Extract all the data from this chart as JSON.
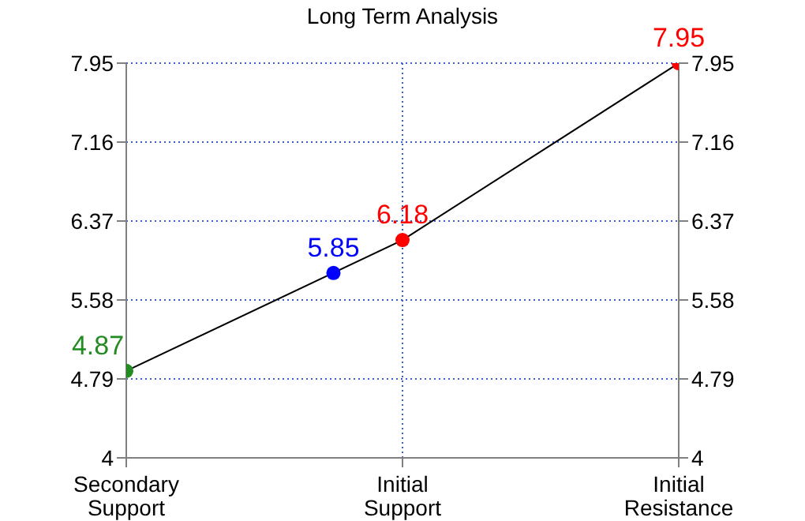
{
  "chart_data": {
    "type": "line",
    "title": "Long Term Analysis",
    "categories": [
      "Secondary Support",
      null,
      null,
      null,
      "Initial Support",
      null,
      null,
      null,
      "Initial Resistance"
    ],
    "ylim": [
      4,
      7.95
    ],
    "yticks": [
      4,
      4.79,
      5.58,
      6.37,
      7.16,
      7.95
    ],
    "y2lim": [
      4,
      7.95
    ],
    "y2ticks": [
      4,
      4.79,
      5.58,
      6.37,
      7.16,
      7.95
    ],
    "grid": true,
    "series": [
      {
        "values": [
          4.87,
          null,
          null,
          null,
          6.18,
          null,
          null,
          null,
          7.95
        ],
        "color": "#000000",
        "marker": "none"
      },
      {
        "type": "scatter",
        "values": [
          4.87,
          null,
          null,
          5.85,
          6.18,
          null,
          null,
          null,
          7.95
        ],
        "colors": [
          "#228b22",
          null,
          null,
          "#0000ff",
          "#ff0000",
          null,
          null,
          null,
          "#ff0000"
        ],
        "value_labels": [
          "4.87",
          null,
          null,
          "5.85",
          "6.18",
          null,
          null,
          null,
          "7.95"
        ],
        "marker": "circle"
      }
    ]
  }
}
